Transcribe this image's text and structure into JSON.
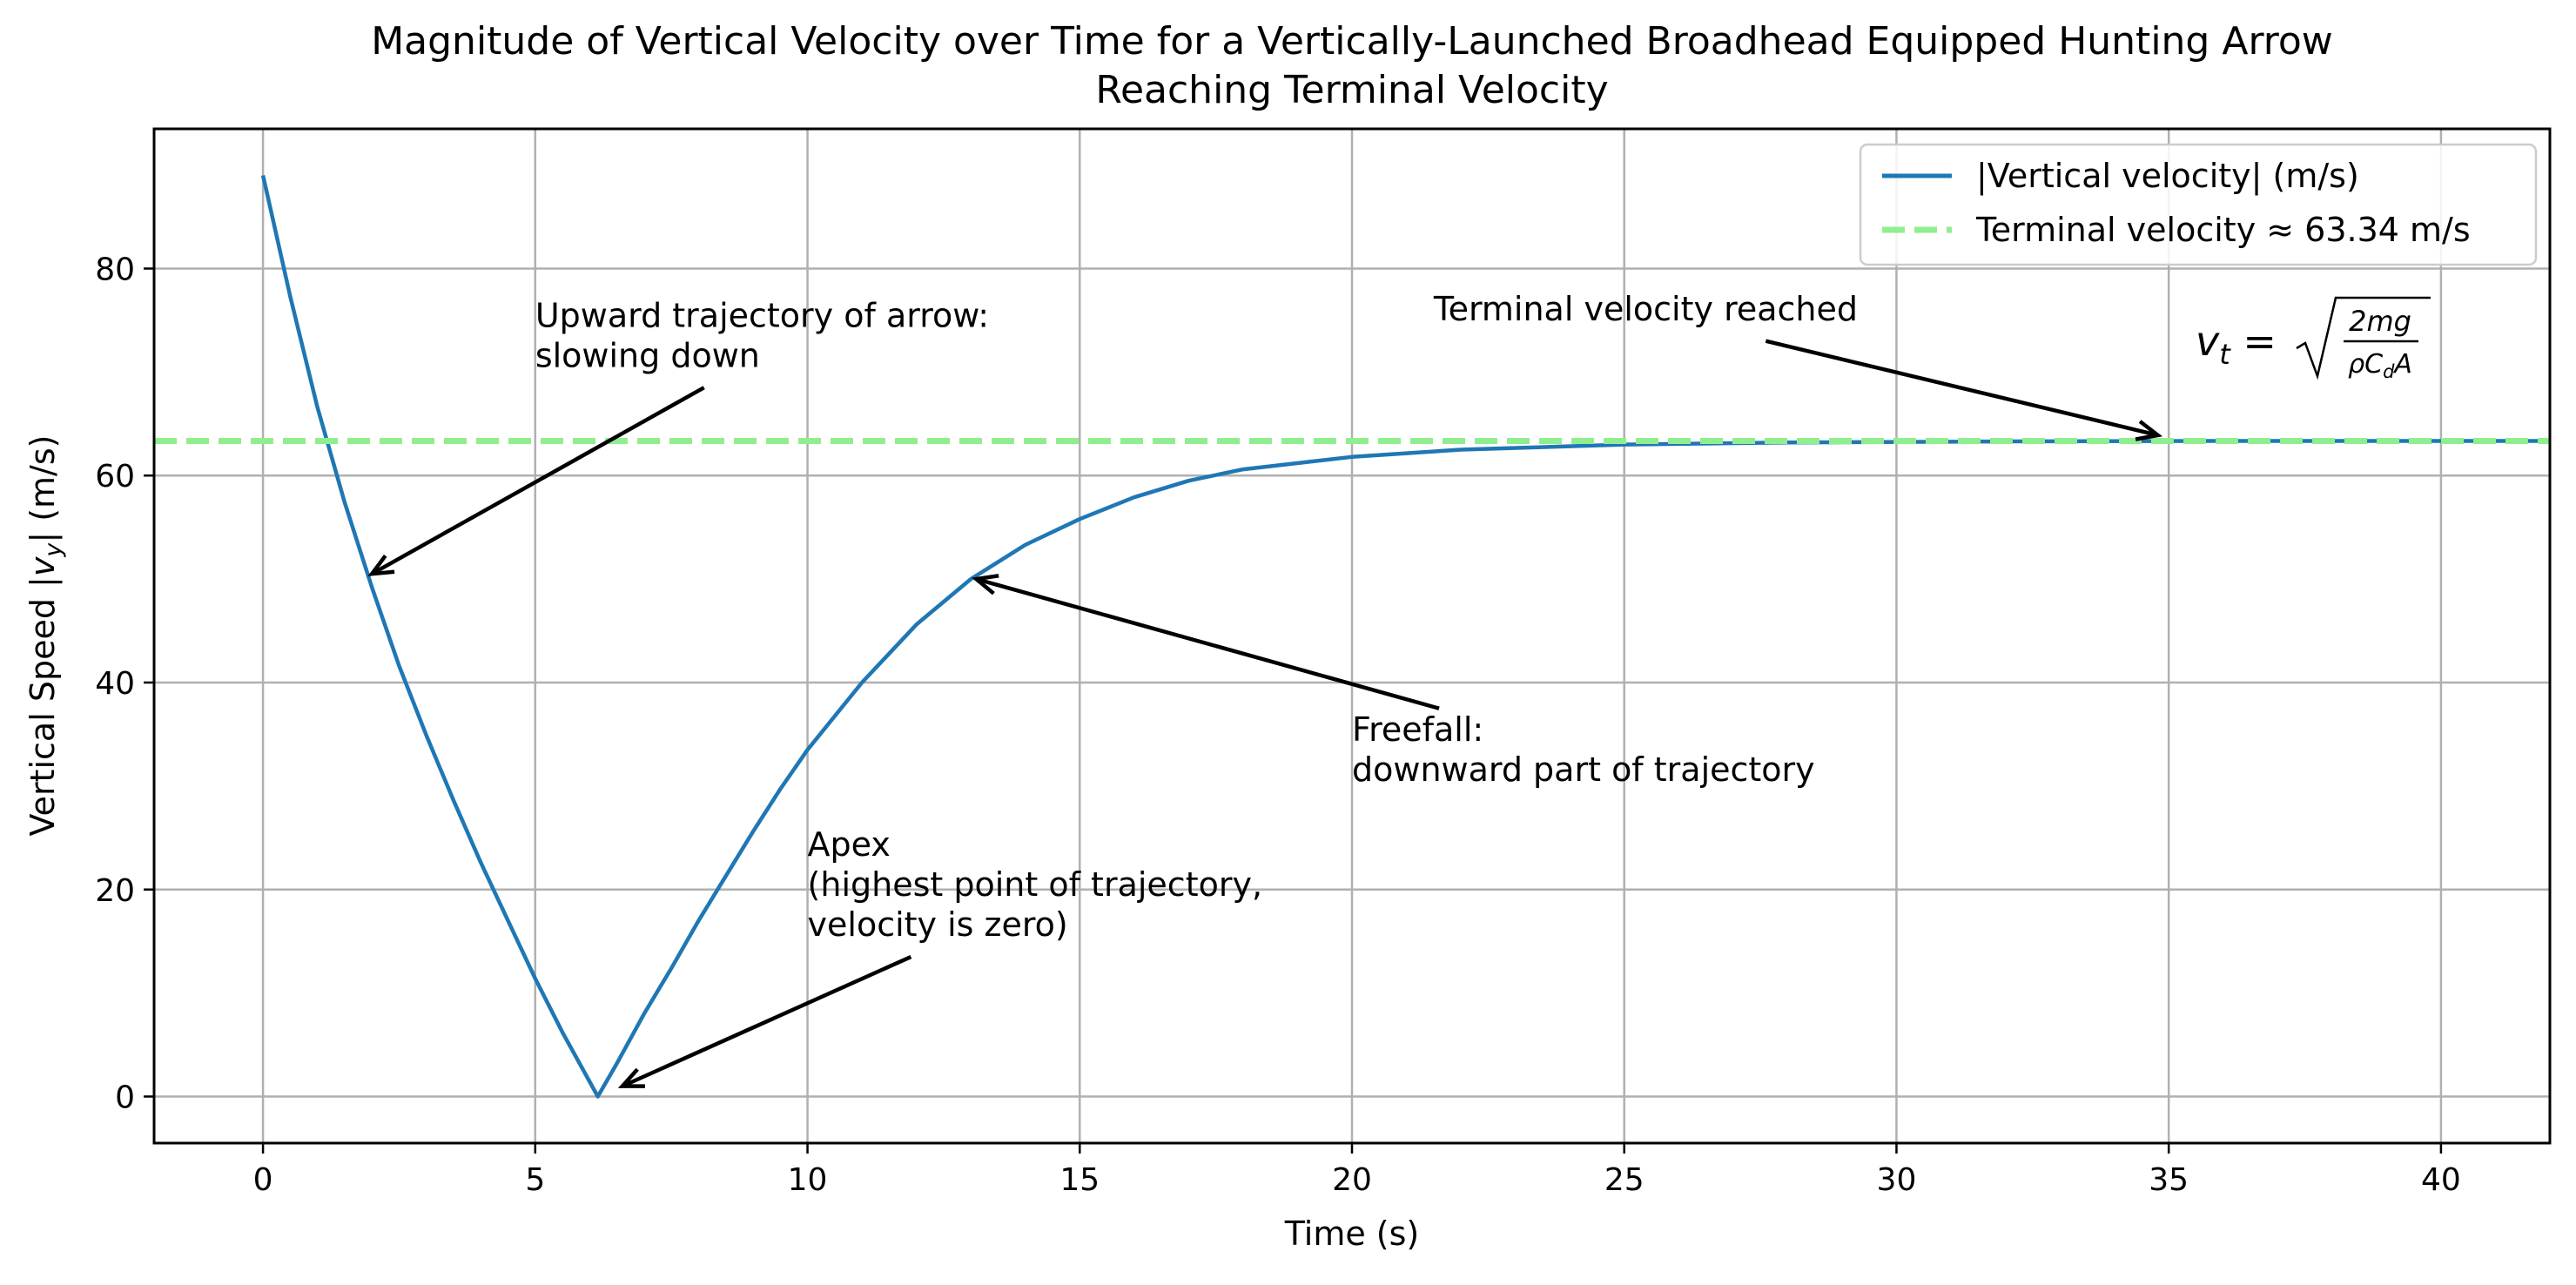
{
  "chart_data": {
    "type": "line",
    "title_line1": "Magnitude of Vertical Velocity over Time for a Vertically-Launched Broadhead Equipped Hunting Arrow",
    "title_line2": "Reaching Terminal Velocity",
    "xlabel": "Time (s)",
    "ylabel_prefix": "Vertical Speed |",
    "ylabel_var": "v",
    "ylabel_sub": "y",
    "ylabel_suffix": "| (m/s)",
    "xlim": [
      -2.0,
      42.0
    ],
    "ylim": [
      -4.5,
      93.5
    ],
    "xticks": [
      0,
      5,
      10,
      15,
      20,
      25,
      30,
      35,
      40
    ],
    "yticks": [
      0,
      20,
      40,
      60,
      80
    ],
    "grid": true,
    "legend_position": "top-right",
    "legend": [
      {
        "label": "|Vertical velocity| (m/s)",
        "color": "#1f77b4",
        "style": "solid"
      },
      {
        "label": "Terminal velocity ≈ 63.34 m/s",
        "color": "#90ee90",
        "style": "dashed"
      }
    ],
    "series": [
      {
        "name": "|Vertical velocity| (m/s)",
        "color": "#1f77b4",
        "points": [
          [
            0,
            89.0
          ],
          [
            0.5,
            77.3
          ],
          [
            1.0,
            66.6
          ],
          [
            1.5,
            57.4
          ],
          [
            2.0,
            49.2
          ],
          [
            2.5,
            41.6
          ],
          [
            3.0,
            34.9
          ],
          [
            3.5,
            28.6
          ],
          [
            4.0,
            22.6
          ],
          [
            4.5,
            17.0
          ],
          [
            5.0,
            11.4
          ],
          [
            5.5,
            6.2
          ],
          [
            6.15,
            0.0
          ],
          [
            6.5,
            3.2
          ],
          [
            7.0,
            8.0
          ],
          [
            7.5,
            12.4
          ],
          [
            8.0,
            17.0
          ],
          [
            8.5,
            21.3
          ],
          [
            9.0,
            25.6
          ],
          [
            9.5,
            29.7
          ],
          [
            10.0,
            33.5
          ],
          [
            11.0,
            40.0
          ],
          [
            12.0,
            45.6
          ],
          [
            13.0,
            50.0
          ],
          [
            14.0,
            53.3
          ],
          [
            15.0,
            55.8
          ],
          [
            16.0,
            57.9
          ],
          [
            17.0,
            59.5
          ],
          [
            18.0,
            60.6
          ],
          [
            20.0,
            61.8
          ],
          [
            22.0,
            62.5
          ],
          [
            25.0,
            63.0
          ],
          [
            28.0,
            63.2
          ],
          [
            32.0,
            63.3
          ],
          [
            36.0,
            63.34
          ],
          [
            42.0,
            63.34
          ]
        ]
      }
    ],
    "terminal_velocity": 63.34,
    "formula": {
      "lhs": "v",
      "lhs_sub": "t",
      "num": "2mg",
      "den_rho": "ρ",
      "den_c": "C",
      "den_sub": "d",
      "den_a": "A"
    },
    "annotations": [
      {
        "line1": "Upward trajectory of arrow:",
        "line2": "slowing down",
        "line3": "",
        "text_at": [
          5.0,
          70.5
        ],
        "arrow_from": [
          8.1,
          68.5
        ],
        "arrow_to": [
          2.0,
          50.5
        ]
      },
      {
        "line1": "Apex",
        "line2": "(highest point of trajectory,",
        "line3": "velocity is zero)",
        "text_at": [
          10.0,
          15.5
        ],
        "arrow_from": [
          11.9,
          13.5
        ],
        "arrow_to": [
          6.6,
          1.0
        ]
      },
      {
        "line1": "Freefall:",
        "line2": "downward part of trajectory",
        "line3": "",
        "text_at": [
          20.0,
          30.5
        ],
        "arrow_from": [
          21.6,
          37.5
        ],
        "arrow_to": [
          13.1,
          50.0
        ]
      },
      {
        "line1": "Terminal velocity reached",
        "line2": "",
        "line3": "",
        "text_at": [
          21.5,
          75.0
        ],
        "arrow_from": [
          27.6,
          73.0
        ],
        "arrow_to": [
          34.8,
          63.9
        ]
      }
    ]
  }
}
